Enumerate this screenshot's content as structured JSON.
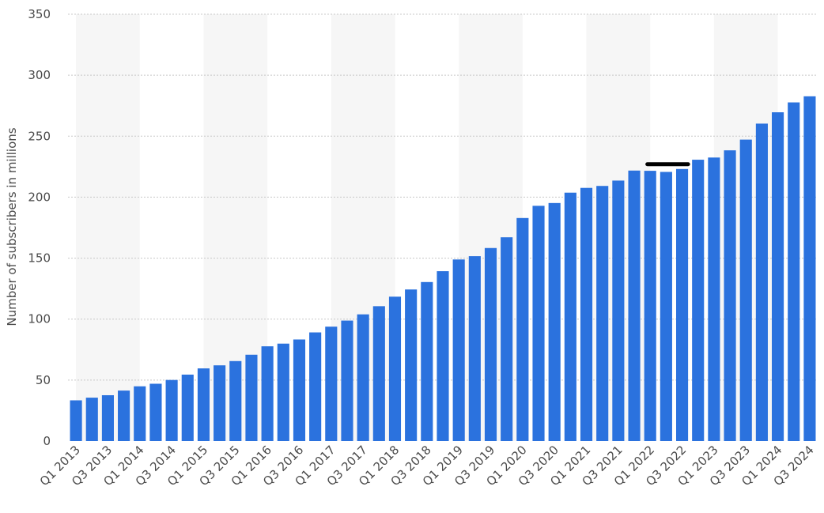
{
  "chart_data": {
    "type": "bar",
    "title": "",
    "xlabel": "",
    "ylabel": "Number of subscribers in millions",
    "ylim": [
      0,
      350
    ],
    "yticks": [
      0,
      50,
      100,
      150,
      200,
      250,
      300,
      350
    ],
    "grid": true,
    "legend": "none",
    "bar_color": "#2b72de",
    "band_color": "#f6f6f6",
    "grid_color": "#c8c8c8",
    "annotation_color": "#000000",
    "categories": [
      "Q1 2013",
      "Q2 2013",
      "Q3 2013",
      "Q4 2013",
      "Q1 2014",
      "Q2 2014",
      "Q3 2014",
      "Q4 2014",
      "Q1 2015",
      "Q2 2015",
      "Q3 2015",
      "Q4 2015",
      "Q1 2016",
      "Q2 2016",
      "Q3 2016",
      "Q4 2016",
      "Q1 2017",
      "Q2 2017",
      "Q3 2017",
      "Q4 2017",
      "Q1 2018",
      "Q2 2018",
      "Q3 2018",
      "Q4 2018",
      "Q1 2019",
      "Q2 2019",
      "Q3 2019",
      "Q4 2019",
      "Q1 2020",
      "Q2 2020",
      "Q3 2020",
      "Q4 2020",
      "Q1 2021",
      "Q2 2021",
      "Q3 2021",
      "Q4 2021",
      "Q1 2022",
      "Q2 2022",
      "Q3 2022",
      "Q4 2022",
      "Q1 2023",
      "Q2 2023",
      "Q3 2023",
      "Q4 2023",
      "Q1 2024",
      "Q2 2024",
      "Q3 2024"
    ],
    "tick_labels": [
      "Q1 2013",
      "",
      "Q3 2013",
      "",
      "Q1 2014",
      "",
      "Q3 2014",
      "",
      "Q1 2015",
      "",
      "Q3 2015",
      "",
      "Q1 2016",
      "",
      "Q3 2016",
      "",
      "Q1 2017",
      "",
      "Q3 2017",
      "",
      "Q1 2018",
      "",
      "Q3 2018",
      "",
      "Q1 2019",
      "",
      "Q3 2019",
      "",
      "Q1 2020",
      "",
      "Q3 2020",
      "",
      "Q1 2021",
      "",
      "Q3 2021",
      "",
      "Q1 2022",
      "",
      "Q3 2022",
      "",
      "Q1 2023",
      "",
      "Q3 2023",
      "",
      "Q1 2024",
      "",
      "Q3 2024"
    ],
    "values": [
      33.4,
      35.6,
      37.6,
      41.4,
      44.9,
      47.0,
      50.1,
      54.5,
      59.6,
      62.1,
      65.6,
      70.8,
      77.7,
      79.9,
      83.3,
      89.1,
      93.8,
      98.8,
      103.9,
      110.6,
      118.4,
      124.3,
      130.4,
      139.3,
      148.9,
      151.6,
      158.3,
      167.1,
      182.9,
      192.9,
      195.2,
      203.7,
      207.6,
      209.2,
      213.6,
      221.8,
      221.6,
      220.7,
      223.1,
      230.7,
      232.5,
      238.4,
      247.2,
      260.3,
      269.6,
      277.7,
      282.7
    ],
    "annotations": [
      {
        "type": "horizontal-line",
        "y": 227,
        "x_start": "Q1 2022",
        "x_end": "Q3 2022"
      }
    ]
  }
}
